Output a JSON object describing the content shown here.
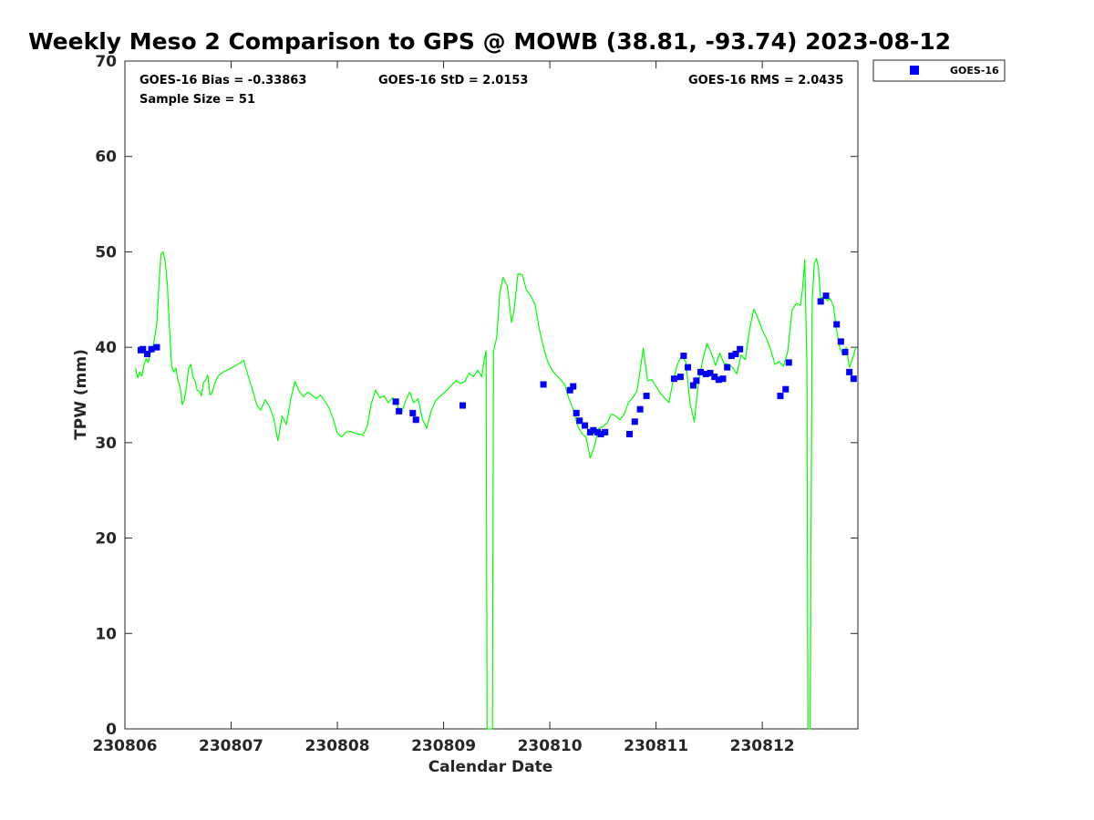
{
  "chart_data": {
    "type": "scatter",
    "title": "Weekly Meso 2 Comparison to GPS @ MOWB (38.81, -93.74) 2023-08-12",
    "xlabel": "Calendar Date",
    "ylabel": "TPW (mm)",
    "xlim": [
      230806.0,
      230812.9
    ],
    "ylim": [
      0,
      70
    ],
    "xticks": [
      230806,
      230807,
      230808,
      230809,
      230810,
      230811,
      230812
    ],
    "xtick_labels": [
      "230806",
      "230807",
      "230808",
      "230809",
      "230810",
      "230811",
      "230812"
    ],
    "yticks": [
      0,
      10,
      20,
      30,
      40,
      50,
      60,
      70
    ],
    "ytick_labels": [
      "0",
      "10",
      "20",
      "30",
      "40",
      "50",
      "60",
      "70"
    ],
    "grid": false,
    "legend_position": "outside-top-right",
    "stats": {
      "bias": "GOES-16 Bias = -0.33863",
      "std": "GOES-16 StD = 2.0153",
      "rms": "GOES-16 RMS = 2.0435",
      "sample": "Sample Size = 51"
    },
    "series": [
      {
        "name": "GOES-16",
        "kind": "scatter",
        "color": "#0000ff",
        "marker": "square",
        "x": [
          230806.15,
          230806.17,
          230806.21,
          230806.25,
          230806.3,
          230808.55,
          230808.58,
          230808.71,
          230808.74,
          230809.18,
          230809.94,
          230810.19,
          230810.22,
          230810.25,
          230810.28,
          230810.33,
          230810.38,
          230810.41,
          230810.45,
          230810.48,
          230810.52,
          230810.75,
          230810.8,
          230810.85,
          230810.91,
          230811.17,
          230811.23,
          230811.26,
          230811.3,
          230811.35,
          230811.38,
          230811.42,
          230811.47,
          230811.51,
          230811.55,
          230811.59,
          230811.63,
          230811.67,
          230811.71,
          230811.75,
          230811.79,
          230812.17,
          230812.22,
          230812.25,
          230812.55,
          230812.6,
          230812.7,
          230812.74,
          230812.78,
          230812.82,
          230812.86
        ],
        "y": [
          39.7,
          39.8,
          39.3,
          39.8,
          40.0,
          34.3,
          33.3,
          33.1,
          32.4,
          33.9,
          36.1,
          35.5,
          35.9,
          33.1,
          32.3,
          31.8,
          31.1,
          31.3,
          31.1,
          30.9,
          31.1,
          30.9,
          32.2,
          33.5,
          34.9,
          36.7,
          36.9,
          39.1,
          37.9,
          36.0,
          36.5,
          37.4,
          37.2,
          37.3,
          36.9,
          36.6,
          36.7,
          37.9,
          39.1,
          39.3,
          39.8,
          34.9,
          35.6,
          38.4,
          44.8,
          45.4,
          42.4,
          40.6,
          39.5,
          37.4,
          36.7
        ]
      },
      {
        "name": "",
        "kind": "line",
        "color": "#00ff00",
        "x": [
          230806.1,
          230806.12,
          230806.14,
          230806.16,
          230806.18,
          230806.2,
          230806.22,
          230806.24,
          230806.26,
          230806.28,
          230806.3,
          230806.32,
          230806.34,
          230806.36,
          230806.38,
          230806.4,
          230806.42,
          230806.44,
          230806.46,
          230806.48,
          230806.5,
          230806.52,
          230806.54,
          230806.56,
          230806.58,
          230806.6,
          230806.62,
          230806.64,
          230806.66,
          230806.68,
          230806.7,
          230806.72,
          230806.74,
          230806.76,
          230806.78,
          230806.8,
          230806.82,
          230806.84,
          230806.86,
          230806.88,
          230806.9,
          230806.94,
          230807.0,
          230807.06,
          230807.12,
          230807.16,
          230807.2,
          230807.24,
          230807.28,
          230807.32,
          230807.36,
          230807.4,
          230807.44,
          230807.48,
          230807.52,
          230807.56,
          230807.6,
          230807.64,
          230807.68,
          230807.72,
          230807.76,
          230807.8,
          230807.84,
          230807.88,
          230807.92,
          230807.96,
          230808.0,
          230808.04,
          230808.08,
          230808.12,
          230808.16,
          230808.2,
          230808.24,
          230808.28,
          230808.32,
          230808.36,
          230808.4,
          230808.44,
          230808.48,
          230808.52,
          230808.56,
          230808.6,
          230808.64,
          230808.68,
          230808.72,
          230808.76,
          230808.8,
          230808.84,
          230808.88,
          230808.92,
          230808.96,
          230809.0,
          230809.04,
          230809.08,
          230809.12,
          230809.16,
          230809.2,
          230809.24,
          230809.28,
          230809.32,
          230809.36,
          230809.38,
          230809.4,
          230809.41,
          230809.46,
          230809.47,
          230809.5,
          230809.53,
          230809.56,
          230809.6,
          230809.64,
          230809.66,
          230809.7,
          230809.74,
          230809.78,
          230809.82,
          230809.86,
          230809.9,
          230809.94,
          230809.98,
          230810.02,
          230810.06,
          230810.1,
          230810.14,
          230810.18,
          230810.22,
          230810.26,
          230810.3,
          230810.34,
          230810.38,
          230810.42,
          230810.46,
          230810.5,
          230810.54,
          230810.58,
          230810.62,
          230810.66,
          230810.7,
          230810.74,
          230810.78,
          230810.82,
          230810.84,
          230810.88,
          230810.92,
          230810.96,
          230811.0,
          230811.04,
          230811.08,
          230811.12,
          230811.16,
          230811.2,
          230811.24,
          230811.28,
          230811.32,
          230811.36,
          230811.4,
          230811.44,
          230811.48,
          230811.52,
          230811.56,
          230811.6,
          230811.64,
          230811.68,
          230811.72,
          230811.76,
          230811.8,
          230811.84,
          230811.88,
          230811.92,
          230811.96,
          230812.0,
          230812.04,
          230812.08,
          230812.12,
          230812.16,
          230812.2,
          230812.24,
          230812.28,
          230812.32,
          230812.36,
          230812.38,
          230812.4,
          230812.42,
          230812.43,
          230812.45,
          230812.47,
          230812.49,
          230812.51,
          230812.53,
          230812.55,
          230812.58,
          230812.61,
          230812.64,
          230812.67,
          230812.7,
          230812.73,
          230812.76,
          230812.79,
          230812.82,
          230812.85,
          230812.88
        ],
        "y": [
          37.8,
          36.8,
          37.4,
          37.0,
          38.2,
          38.8,
          38.4,
          39.4,
          39.8,
          41.0,
          42.5,
          46.5,
          49.8,
          50.0,
          49.0,
          46.5,
          42.0,
          38.0,
          37.4,
          37.8,
          36.5,
          35.8,
          34.0,
          34.5,
          36.0,
          37.8,
          38.2,
          36.9,
          36.5,
          35.5,
          35.4,
          34.9,
          36.3,
          36.6,
          37.1,
          35.0,
          35.2,
          36.0,
          36.6,
          37.0,
          37.2,
          37.5,
          37.8,
          38.2,
          38.6,
          37.0,
          35.6,
          34.0,
          33.4,
          34.5,
          33.8,
          32.6,
          30.2,
          32.8,
          31.9,
          34.5,
          36.4,
          35.4,
          34.8,
          35.3,
          35.0,
          34.6,
          35.0,
          34.4,
          33.7,
          32.5,
          31.0,
          30.6,
          31.1,
          31.2,
          31.0,
          30.9,
          30.8,
          31.7,
          34.1,
          35.5,
          34.7,
          34.9,
          34.2,
          34.7,
          34.0,
          33.0,
          34.3,
          35.3,
          34.2,
          34.6,
          32.5,
          31.5,
          33.2,
          34.3,
          34.8,
          35.2,
          35.6,
          36.1,
          36.5,
          36.2,
          36.4,
          37.3,
          36.9,
          37.6,
          36.9,
          38.6,
          39.6,
          0.0,
          0.0,
          39.6,
          41.0,
          45.8,
          47.3,
          46.4,
          42.6,
          43.6,
          47.7,
          47.6,
          46.0,
          45.4,
          44.5,
          42.0,
          40.0,
          38.5,
          37.6,
          37.1,
          36.6,
          36.1,
          34.6,
          33.5,
          31.8,
          31.0,
          30.6,
          28.4,
          29.6,
          31.5,
          31.7,
          32.1,
          33.0,
          32.8,
          32.4,
          33.0,
          34.2,
          34.7,
          35.4,
          36.8,
          39.9,
          36.5,
          36.6,
          35.9,
          35.2,
          34.7,
          34.2,
          36.4,
          38.2,
          39.1,
          38.5,
          34.1,
          32.2,
          36.4,
          38.7,
          40.4,
          39.4,
          38.1,
          39.4,
          38.3,
          38.2,
          37.9,
          37.2,
          39.2,
          38.7,
          41.8,
          44.0,
          43.0,
          41.8,
          40.9,
          39.7,
          38.2,
          38.5,
          38.0,
          39.6,
          43.9,
          44.6,
          44.4,
          46.2,
          49.2,
          38.0,
          0.0,
          0.0,
          44.9,
          48.8,
          49.3,
          48.2,
          45.0,
          45.4,
          44.9,
          45.1,
          44.3,
          41.8,
          39.9,
          39.2,
          40.0,
          37.9,
          38.8,
          40.0
        ]
      }
    ]
  }
}
